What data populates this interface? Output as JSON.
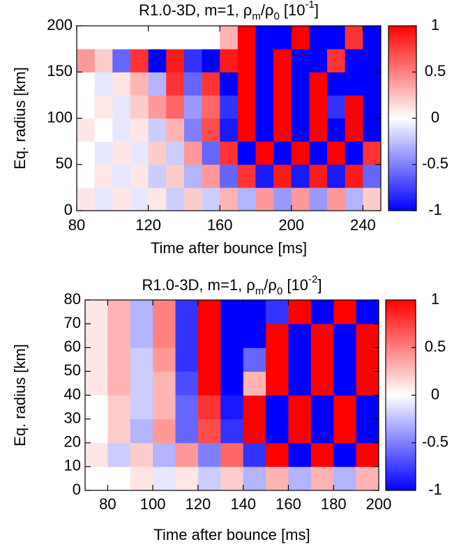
{
  "chart_data": [
    {
      "type": "heatmap",
      "title_parts": [
        {
          "text": "R1.0-3D, m=1, ρ"
        },
        {
          "text": "m",
          "shift": "sub"
        },
        {
          "text": "/ρ"
        },
        {
          "text": "0",
          "shift": "sub"
        },
        {
          "text": " [10"
        },
        {
          "text": "-1",
          "shift": "super"
        },
        {
          "text": "]"
        }
      ],
      "xlabel": "Time after bounce [ms]",
      "ylabel": "Eq. radius [km]",
      "x": [
        85,
        95,
        105,
        115,
        125,
        135,
        145,
        155,
        165,
        175,
        185,
        195,
        205,
        215,
        225,
        235,
        245
      ],
      "y": [
        12.5,
        37.5,
        62.5,
        87.5,
        112.5,
        137.5,
        162.5,
        187.5
      ],
      "z": [
        [
          0.1,
          -0.1,
          0.1,
          -0.1,
          0.1,
          -0.2,
          0.2,
          -0.2,
          0.3,
          -0.3,
          0.4,
          -0.4,
          0.4,
          -0.4,
          0.4,
          -0.3,
          0.2
        ],
        [
          0,
          0.1,
          -0.1,
          0.1,
          -0.2,
          0.2,
          -0.3,
          0.4,
          -0.6,
          0.8,
          -0.9,
          0.9,
          -0.9,
          0.9,
          -0.9,
          0.9,
          -0.6
        ],
        [
          0,
          -0.1,
          0.1,
          -0.1,
          0.2,
          -0.2,
          0.4,
          -0.6,
          0.8,
          -1,
          1,
          -1,
          1,
          -1,
          1,
          -1,
          0.8
        ],
        [
          0.1,
          0,
          -0.1,
          0.1,
          -0.2,
          0.3,
          -0.5,
          0.7,
          -0.9,
          1,
          -1,
          1,
          -1,
          1,
          -1,
          1,
          -1
        ],
        [
          0,
          0.1,
          -0.1,
          0.2,
          0.4,
          0.6,
          -0.4,
          0.6,
          -0.8,
          1,
          -1,
          1,
          -1,
          1,
          -0.8,
          1,
          -1
        ],
        [
          0,
          -0.1,
          0.1,
          0.3,
          -0.3,
          0.8,
          -0.6,
          0.8,
          -1,
          1,
          -1,
          1,
          -1,
          1,
          -1,
          -1,
          -1
        ],
        [
          0.4,
          0.2,
          -0.6,
          0.8,
          -1,
          0.9,
          -0.8,
          -1,
          0.9,
          1,
          -1,
          1,
          -1,
          -1,
          0.8,
          -1,
          -1
        ],
        [
          0,
          0,
          0,
          0,
          0,
          0,
          0,
          0,
          0.3,
          1,
          -1,
          -1,
          1,
          -1,
          -1,
          0.8,
          -1
        ]
      ],
      "xlim": [
        80,
        250
      ],
      "ylim": [
        0,
        200
      ],
      "xticks": [
        80,
        120,
        160,
        200,
        240
      ],
      "yticks": [
        0,
        50,
        100,
        150,
        200
      ],
      "zlim": [
        -1,
        1
      ],
      "zticks": [
        -1,
        -0.5,
        0,
        0.5,
        1
      ],
      "colorscale": [
        "#0000ff",
        "#ffffff",
        "#ff0000"
      ]
    },
    {
      "type": "heatmap",
      "title_parts": [
        {
          "text": "R1.0-3D, m=1, ρ"
        },
        {
          "text": "m",
          "shift": "sub"
        },
        {
          "text": "/ρ"
        },
        {
          "text": "0",
          "shift": "sub"
        },
        {
          "text": " [10"
        },
        {
          "text": "-2",
          "shift": "super"
        },
        {
          "text": "]"
        }
      ],
      "xlabel": "Time after bounce [ms]",
      "ylabel": "Eq. radius [km]",
      "x": [
        75,
        85,
        95,
        105,
        115,
        125,
        135,
        145,
        155,
        165,
        175,
        185,
        195
      ],
      "y": [
        5,
        15,
        25,
        35,
        45,
        55,
        65,
        75
      ],
      "z": [
        [
          0,
          0,
          0.1,
          -0.1,
          0.1,
          -0.2,
          0.2,
          -0.3,
          0.3,
          -0.3,
          0.3,
          -0.3,
          0.3
        ],
        [
          0.1,
          -0.2,
          0.2,
          -0.3,
          0.4,
          -0.5,
          0.6,
          -0.8,
          1,
          -1,
          1,
          -1,
          1
        ],
        [
          0,
          0.2,
          -0.3,
          0.4,
          -0.6,
          0.7,
          -0.8,
          1,
          -1,
          1,
          -1,
          1,
          -1
        ],
        [
          0,
          0.2,
          -0.2,
          0.3,
          -0.6,
          0.8,
          -0.9,
          1,
          -1,
          1,
          -1,
          1,
          -1
        ],
        [
          0.1,
          0.3,
          -0.2,
          0.3,
          -0.7,
          1,
          -1,
          0.3,
          1,
          -1,
          1,
          -1,
          1
        ],
        [
          0.1,
          0.3,
          -0.2,
          0.4,
          -0.8,
          1,
          -1,
          -0.6,
          1,
          -1,
          1,
          -1,
          1
        ],
        [
          0.1,
          0.3,
          -0.3,
          0.5,
          -0.8,
          1,
          -1,
          -1,
          1,
          -1,
          1,
          -1,
          1
        ],
        [
          0.1,
          0.3,
          -0.3,
          0.5,
          -0.8,
          1,
          -1,
          -1,
          -0.8,
          1,
          -1,
          1,
          -1
        ]
      ],
      "xlim": [
        70,
        200
      ],
      "ylim": [
        0,
        80
      ],
      "xticks": [
        80,
        100,
        120,
        140,
        160,
        180,
        200
      ],
      "yticks": [
        0,
        10,
        20,
        30,
        40,
        50,
        60,
        70,
        80
      ],
      "zlim": [
        -1,
        1
      ],
      "zticks": [
        -1,
        -0.5,
        0,
        0.5,
        1
      ],
      "colorscale": [
        "#0000ff",
        "#ffffff",
        "#ff0000"
      ]
    }
  ]
}
